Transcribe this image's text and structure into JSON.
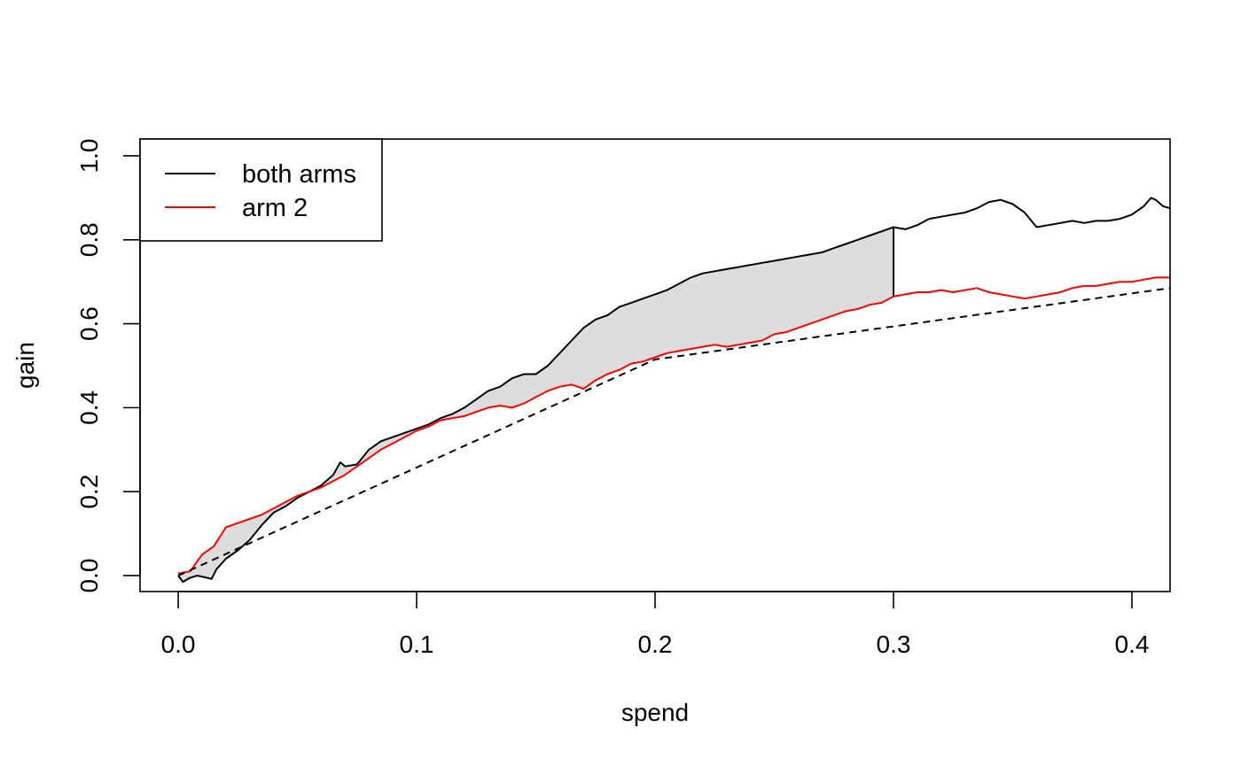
{
  "chart_data": {
    "type": "line",
    "xlabel": "spend",
    "ylabel": "gain",
    "xlim": [
      -0.016,
      0.416
    ],
    "ylim": [
      -0.038,
      1.04
    ],
    "x_ticks": [
      0.0,
      0.1,
      0.2,
      0.3,
      0.4
    ],
    "x_tick_labels": [
      "0.0",
      "0.1",
      "0.2",
      "0.3",
      "0.4"
    ],
    "y_ticks": [
      0.0,
      0.2,
      0.4,
      0.6,
      0.8,
      1.0
    ],
    "y_tick_labels": [
      "0.0",
      "0.2",
      "0.4",
      "0.6",
      "0.8",
      "1.0"
    ],
    "grid": false,
    "legend": {
      "position": "top-left",
      "entries": [
        {
          "label": "both arms",
          "color": "#000000"
        },
        {
          "label": "arm 2",
          "color": "#ff0000"
        }
      ]
    },
    "series": [
      {
        "name": "both arms",
        "color": "#000000",
        "x": [
          0.0,
          0.002,
          0.005,
          0.008,
          0.012,
          0.014,
          0.016,
          0.02,
          0.025,
          0.03,
          0.035,
          0.04,
          0.045,
          0.05,
          0.055,
          0.06,
          0.065,
          0.068,
          0.07,
          0.075,
          0.08,
          0.085,
          0.09,
          0.095,
          0.1,
          0.105,
          0.11,
          0.115,
          0.12,
          0.125,
          0.13,
          0.135,
          0.14,
          0.145,
          0.15,
          0.155,
          0.16,
          0.165,
          0.17,
          0.175,
          0.18,
          0.185,
          0.19,
          0.195,
          0.2,
          0.205,
          0.21,
          0.215,
          0.22,
          0.225,
          0.23,
          0.235,
          0.24,
          0.245,
          0.25,
          0.255,
          0.26,
          0.265,
          0.27,
          0.275,
          0.28,
          0.285,
          0.29,
          0.295,
          0.3,
          0.305,
          0.31,
          0.315,
          0.32,
          0.325,
          0.33,
          0.335,
          0.34,
          0.345,
          0.35,
          0.355,
          0.36,
          0.365,
          0.37,
          0.375,
          0.38,
          0.385,
          0.39,
          0.395,
          0.4,
          0.405,
          0.408,
          0.41,
          0.413,
          0.416
        ],
        "y": [
          0.0,
          -0.015,
          -0.005,
          0.0,
          -0.005,
          -0.008,
          0.015,
          0.04,
          0.06,
          0.085,
          0.12,
          0.15,
          0.165,
          0.185,
          0.2,
          0.215,
          0.24,
          0.27,
          0.26,
          0.265,
          0.3,
          0.32,
          0.33,
          0.34,
          0.35,
          0.36,
          0.375,
          0.385,
          0.4,
          0.42,
          0.44,
          0.45,
          0.47,
          0.48,
          0.48,
          0.5,
          0.53,
          0.56,
          0.59,
          0.61,
          0.62,
          0.64,
          0.65,
          0.66,
          0.67,
          0.68,
          0.695,
          0.71,
          0.72,
          0.725,
          0.73,
          0.735,
          0.74,
          0.745,
          0.75,
          0.755,
          0.76,
          0.765,
          0.77,
          0.78,
          0.79,
          0.8,
          0.81,
          0.82,
          0.83,
          0.825,
          0.835,
          0.85,
          0.855,
          0.86,
          0.865,
          0.875,
          0.89,
          0.895,
          0.885,
          0.865,
          0.83,
          0.835,
          0.84,
          0.845,
          0.84,
          0.845,
          0.845,
          0.85,
          0.86,
          0.88,
          0.9,
          0.895,
          0.88,
          0.875
        ]
      },
      {
        "name": "arm 2",
        "color": "#ff0000",
        "x": [
          0.0,
          0.005,
          0.01,
          0.015,
          0.02,
          0.025,
          0.03,
          0.035,
          0.04,
          0.045,
          0.05,
          0.055,
          0.06,
          0.065,
          0.07,
          0.075,
          0.08,
          0.085,
          0.09,
          0.095,
          0.1,
          0.105,
          0.11,
          0.115,
          0.12,
          0.125,
          0.13,
          0.135,
          0.14,
          0.145,
          0.15,
          0.155,
          0.16,
          0.165,
          0.17,
          0.175,
          0.18,
          0.185,
          0.19,
          0.195,
          0.2,
          0.205,
          0.21,
          0.215,
          0.22,
          0.225,
          0.23,
          0.235,
          0.24,
          0.245,
          0.25,
          0.255,
          0.26,
          0.265,
          0.27,
          0.275,
          0.28,
          0.285,
          0.29,
          0.295,
          0.3,
          0.305,
          0.31,
          0.315,
          0.32,
          0.325,
          0.33,
          0.335,
          0.34,
          0.345,
          0.35,
          0.355,
          0.36,
          0.365,
          0.37,
          0.375,
          0.38,
          0.385,
          0.39,
          0.395,
          0.4,
          0.405,
          0.41,
          0.416
        ],
        "y": [
          0.005,
          0.01,
          0.05,
          0.07,
          0.115,
          0.125,
          0.135,
          0.145,
          0.16,
          0.175,
          0.19,
          0.2,
          0.21,
          0.225,
          0.24,
          0.26,
          0.28,
          0.3,
          0.315,
          0.33,
          0.345,
          0.355,
          0.37,
          0.375,
          0.38,
          0.39,
          0.4,
          0.405,
          0.4,
          0.41,
          0.425,
          0.44,
          0.45,
          0.455,
          0.445,
          0.465,
          0.48,
          0.49,
          0.505,
          0.51,
          0.52,
          0.53,
          0.535,
          0.54,
          0.545,
          0.55,
          0.545,
          0.55,
          0.555,
          0.56,
          0.575,
          0.58,
          0.59,
          0.6,
          0.61,
          0.62,
          0.63,
          0.635,
          0.645,
          0.65,
          0.665,
          0.67,
          0.675,
          0.675,
          0.68,
          0.675,
          0.68,
          0.685,
          0.675,
          0.67,
          0.665,
          0.66,
          0.665,
          0.67,
          0.675,
          0.685,
          0.69,
          0.69,
          0.695,
          0.7,
          0.7,
          0.705,
          0.71,
          0.71
        ]
      },
      {
        "name": "",
        "color": "#000000",
        "dashed": true,
        "x": [
          0.0,
          0.2,
          0.416
        ],
        "y": [
          0.0,
          0.515,
          0.685
        ]
      }
    ],
    "shaded_region": {
      "between": [
        "both arms",
        "arm 2"
      ],
      "x_range": [
        0.0,
        0.3
      ],
      "fill": "#dddddd"
    },
    "vertical_segment": {
      "x": 0.3,
      "y": [
        0.665,
        0.83
      ]
    }
  }
}
